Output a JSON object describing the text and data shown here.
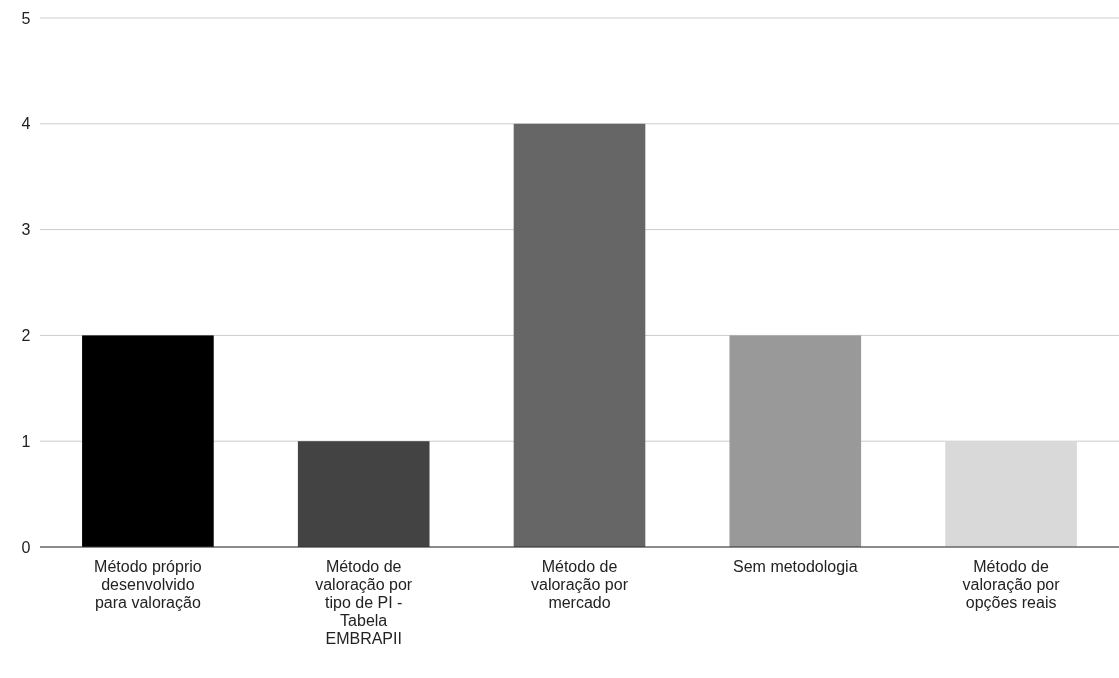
{
  "chart_data": {
    "type": "bar",
    "categories": [
      "Método próprio desenvolvido para valoração",
      "Método de valoração por tipo de PI - Tabela EMBRAPII",
      "Método de valoração por mercado",
      "Sem metodologia",
      "Método de valoração por opções reais"
    ],
    "values": [
      2,
      1,
      4,
      2,
      1
    ],
    "colors": [
      "#000000",
      "#434343",
      "#666666",
      "#999999",
      "#d9d9d9"
    ],
    "ylim": [
      0,
      5
    ],
    "yticks": [
      0,
      1,
      2,
      3,
      4,
      5
    ],
    "grid": "y"
  }
}
